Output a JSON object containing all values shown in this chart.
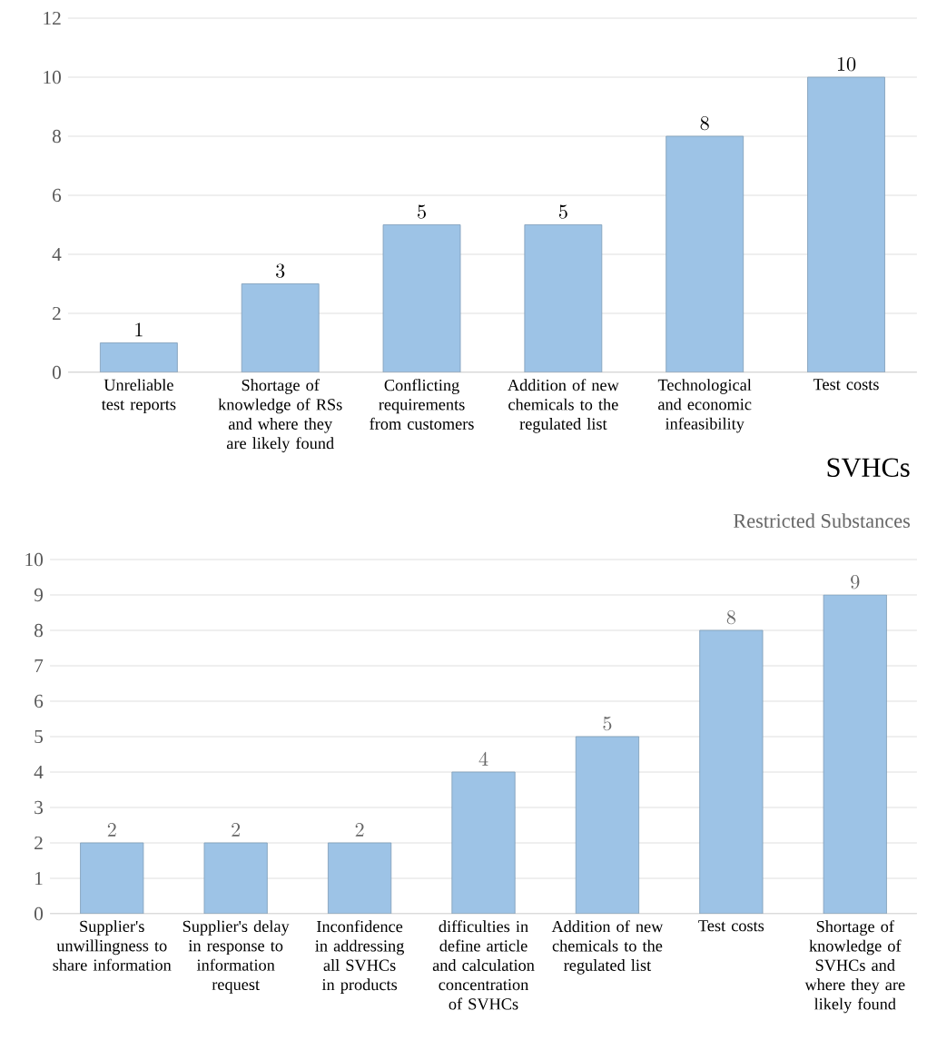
{
  "chart_data": [
    {
      "type": "bar",
      "title": "SVHCs",
      "categories": [
        "Unreliable test reports",
        "Shortage of knowledge of RSs and where they are likely found",
        "Conflicting requirements from customers",
        "Addition of new chemicals to the regulated list",
        "Technological and economic infeasibility",
        "Test costs"
      ],
      "values": [
        1,
        3,
        5,
        5,
        8,
        10
      ],
      "color": "#9dc3e6",
      "ylim": [
        0,
        12
      ],
      "yticks": [
        0,
        2,
        4,
        6,
        8,
        10,
        12
      ],
      "grid": "y",
      "data_labels": true
    },
    {
      "type": "bar",
      "title": "Restricted Substances",
      "categories": [
        "Supplier's unwillingness to share information",
        "Supplier's delay in response to information request",
        "Inconfidence in addressing all SVHCs in products",
        "difficulties in define article and calculation concentration of SVHCs",
        "Addition of new chemicals to the regulated list",
        "Test costs",
        "Shortage of knowledge of SVHCs and where they are likely found"
      ],
      "values": [
        2,
        2,
        2,
        4,
        5,
        8,
        9
      ],
      "color": "#9dc3e6",
      "ylim": [
        0,
        10
      ],
      "yticks": [
        0,
        1,
        2,
        3,
        4,
        5,
        6,
        7,
        8,
        9,
        10
      ],
      "grid": "y",
      "data_labels": true
    }
  ]
}
